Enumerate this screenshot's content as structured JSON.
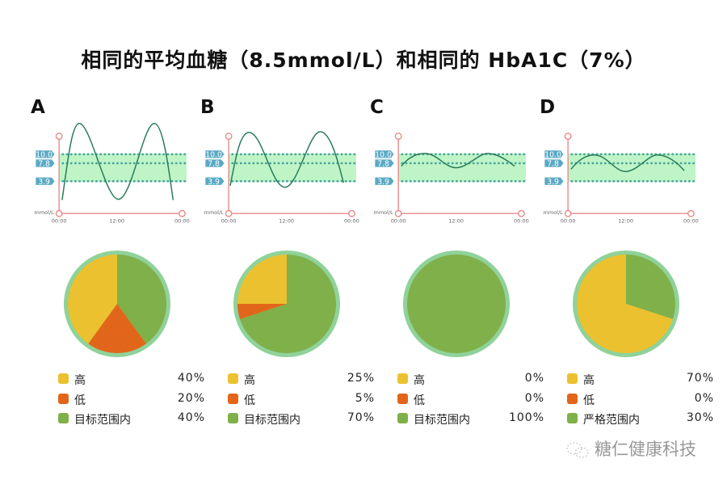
{
  "title": "相同的平均血糖（8.5mmol/L）和相同的 HbA1C（7%）",
  "colors": {
    "high": "#ebc12f",
    "low": "#e2661a",
    "in_range": "#80b04a",
    "ring": "#8fd29a",
    "band": "#bff5c6",
    "axis": "#e88a8a",
    "tag": "#5aa9c4",
    "curve": "#2a7a5a"
  },
  "axis": {
    "unit": "mmol/L",
    "x_ticks": [
      "00:00",
      "12:00",
      "00:00"
    ],
    "y_tags": [
      "10.0",
      "7.8",
      "3.9"
    ]
  },
  "panels": [
    {
      "letter": "A",
      "legend": [
        {
          "label": "高",
          "pct": "40%"
        },
        {
          "label": "低",
          "pct": "20%"
        },
        {
          "label": "目标范围内",
          "pct": "40%"
        }
      ],
      "pie": {
        "in_range": 40,
        "low": 20,
        "high": 40
      }
    },
    {
      "letter": "B",
      "legend": [
        {
          "label": "高",
          "pct": "25%"
        },
        {
          "label": "低",
          "pct": "5%"
        },
        {
          "label": "目标范围内",
          "pct": "70%"
        }
      ],
      "pie": {
        "in_range": 70,
        "low": 5,
        "high": 25
      }
    },
    {
      "letter": "C",
      "legend": [
        {
          "label": "高",
          "pct": "0%"
        },
        {
          "label": "低",
          "pct": "0%"
        },
        {
          "label": "目标范围内",
          "pct": "100%"
        }
      ],
      "pie": {
        "in_range": 100,
        "low": 0,
        "high": 0
      }
    },
    {
      "letter": "D",
      "legend": [
        {
          "label": "高",
          "pct": "70%"
        },
        {
          "label": "低",
          "pct": "0%"
        },
        {
          "label": "严格范围内",
          "pct": "30%"
        }
      ],
      "pie": {
        "in_range": 30,
        "low": 0,
        "high": 70
      }
    }
  ],
  "watermark": "糖仁健康科技"
}
